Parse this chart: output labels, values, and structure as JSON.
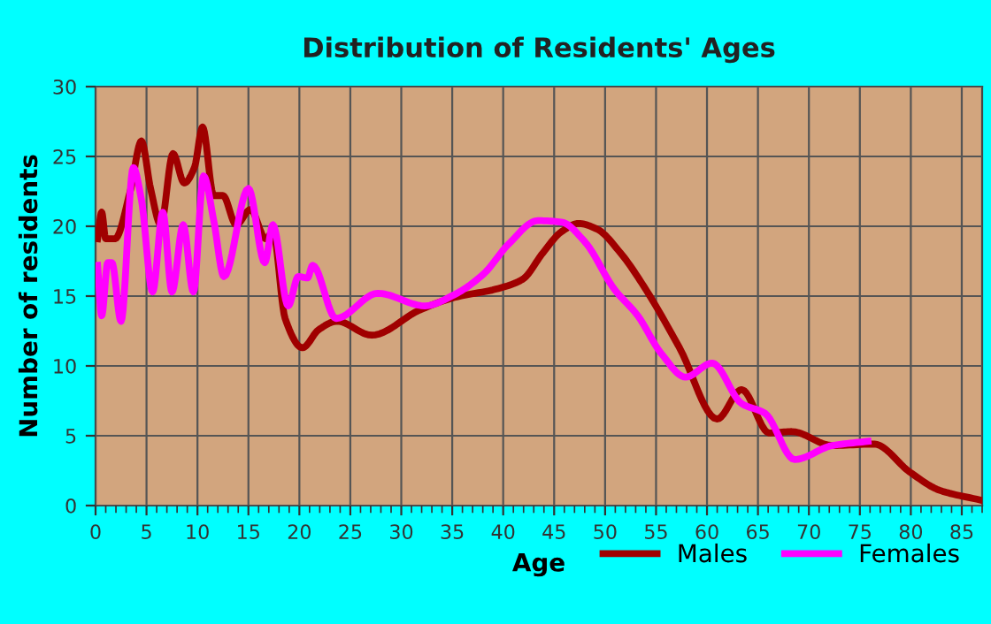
{
  "chart_data": {
    "type": "line",
    "title": "Distribution of Residents' Ages",
    "xlabel": "Age",
    "ylabel": "Number of residents",
    "xlim": [
      0,
      87
    ],
    "xticks": [
      0,
      5,
      10,
      15,
      20,
      25,
      30,
      35,
      40,
      45,
      50,
      55,
      60,
      65,
      70,
      75,
      80,
      85
    ],
    "ylim": [
      0,
      30
    ],
    "yticks": [
      0,
      5,
      10,
      15,
      20,
      25,
      30
    ],
    "grid": true,
    "legend": "bottom right",
    "marker": "none",
    "line_style": "solid",
    "series": [
      {
        "name": "Males",
        "color": "#a00000",
        "x": [
          0.2,
          0.6,
          1.0,
          1.9,
          3.4,
          4.5,
          5.4,
          6.4,
          7.6,
          8.7,
          9.7,
          10.5,
          11.6,
          12.5,
          13.8,
          15.2,
          16.7,
          17.4,
          18.6,
          20.3,
          21.9,
          23.7,
          27.1,
          31.8,
          35.2,
          39.3,
          41.9,
          43.9,
          45.7,
          47.4,
          49.2,
          51.5,
          53.8,
          57.3,
          61.0,
          63.4,
          66.1,
          68.3,
          72.3,
          76.4,
          79.9,
          82.8,
          86.8
        ],
        "values": [
          19.1,
          21,
          19.1,
          19.1,
          22.5,
          26.1,
          22.7,
          20.1,
          25.2,
          23.1,
          24.2,
          27.1,
          22.2,
          22.2,
          20.1,
          21.2,
          19.1,
          19.6,
          13.4,
          11.3,
          12.6,
          13.2,
          12.2,
          14.0,
          14.9,
          15.5,
          16.2,
          18.1,
          19.6,
          20.2,
          19.8,
          18.1,
          15.7,
          11.3,
          6.2,
          8.3,
          5.2,
          5.3,
          4.3,
          4.4,
          2.4,
          1.1,
          0.4
        ]
      },
      {
        "name": "Females",
        "color": "#ff00ff",
        "x": [
          0.2,
          0.6,
          1.2,
          1.6,
          2.5,
          3.7,
          4.5,
          5.6,
          6.6,
          7.5,
          8.6,
          9.6,
          10.6,
          11.6,
          12.6,
          15.0,
          16.6,
          17.4,
          18.9,
          19.9,
          20.8,
          21.3,
          23.6,
          27.7,
          32.3,
          35.2,
          38.1,
          40.5,
          43.4,
          45.7,
          48.0,
          50.9,
          53.2,
          55.5,
          57.9,
          60.5,
          63.4,
          65.7,
          68.6,
          72.3,
          75.8
        ],
        "values": [
          17.2,
          13.6,
          17.4,
          17.4,
          13.2,
          24.2,
          21.9,
          15.3,
          21,
          15.3,
          20.1,
          15.3,
          23.6,
          20.4,
          16.4,
          22.7,
          17.4,
          20.1,
          14.3,
          16.4,
          16.3,
          17.2,
          13.4,
          15.2,
          14.3,
          15.1,
          16.6,
          18.7,
          20.4,
          20.3,
          18.9,
          15.5,
          13.6,
          10.9,
          9.2,
          10.2,
          7.3,
          6.6,
          3.3,
          4.3,
          4.6
        ]
      }
    ]
  }
}
